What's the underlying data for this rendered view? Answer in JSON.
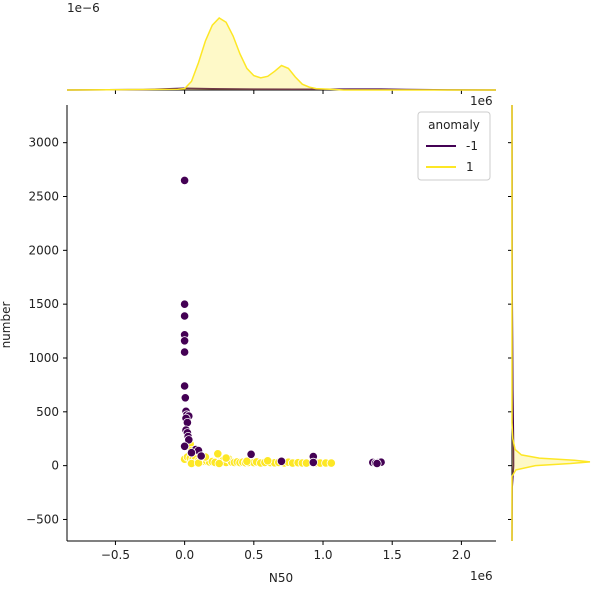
{
  "chart_data": {
    "type": "scatter",
    "subtype": "jointplot",
    "title": "",
    "xlabel": "N50",
    "ylabel": "number",
    "x_scale_label": "1e6",
    "y_scale_label": "",
    "x_marginal_scale_label": "1e6",
    "y_marginal_scale_label": "1e−6",
    "xlim": [
      -0.85,
      2.25
    ],
    "ylim": [
      -700,
      3350
    ],
    "x_ticks": [
      {
        "value": -0.5,
        "label": "−0.5"
      },
      {
        "value": 0.0,
        "label": "0.0"
      },
      {
        "value": 0.5,
        "label": "0.5"
      },
      {
        "value": 1.0,
        "label": "1.0"
      },
      {
        "value": 1.5,
        "label": "1.5"
      },
      {
        "value": 2.0,
        "label": "2.0"
      }
    ],
    "y_ticks": [
      {
        "value": -500,
        "label": "−500"
      },
      {
        "value": 0,
        "label": "0"
      },
      {
        "value": 500,
        "label": "500"
      },
      {
        "value": 1000,
        "label": "1000"
      },
      {
        "value": 1500,
        "label": "1500"
      },
      {
        "value": 2000,
        "label": "2000"
      },
      {
        "value": 2500,
        "label": "2500"
      },
      {
        "value": 3000,
        "label": "3000"
      }
    ],
    "legend": {
      "title": "anomaly",
      "placement": "top-right",
      "entries": [
        {
          "label": "-1",
          "color": "#440154"
        },
        {
          "label": "1",
          "color": "#fde725"
        }
      ]
    },
    "grid": false,
    "series": [
      {
        "name": "-1",
        "color": "#440154",
        "points": [
          [
            0.0,
            2650
          ],
          [
            0.0,
            1500
          ],
          [
            0.0,
            1390
          ],
          [
            0.0,
            1215
          ],
          [
            0.0,
            1160
          ],
          [
            0.0,
            1055
          ],
          [
            0.0,
            740
          ],
          [
            0.005,
            630
          ],
          [
            0.01,
            505
          ],
          [
            0.015,
            470
          ],
          [
            0.03,
            460
          ],
          [
            0.01,
            440
          ],
          [
            0.02,
            400
          ],
          [
            0.01,
            330
          ],
          [
            0.02,
            305
          ],
          [
            0.025,
            270
          ],
          [
            0.03,
            240
          ],
          [
            0.0,
            180
          ],
          [
            0.08,
            150
          ],
          [
            0.1,
            140
          ],
          [
            0.05,
            120
          ],
          [
            0.12,
            90
          ],
          [
            0.48,
            105
          ],
          [
            0.7,
            40
          ],
          [
            0.93,
            85
          ],
          [
            0.93,
            30
          ],
          [
            1.36,
            30
          ],
          [
            1.38,
            25
          ],
          [
            1.4,
            28
          ],
          [
            1.42,
            32
          ],
          [
            1.39,
            20
          ]
        ]
      },
      {
        "name": "1",
        "color": "#fde725",
        "points": [
          [
            0.02,
            270
          ],
          [
            0.03,
            230
          ],
          [
            0.04,
            200
          ],
          [
            0.05,
            140
          ],
          [
            0.07,
            120
          ],
          [
            0.09,
            110
          ],
          [
            0.0,
            60
          ],
          [
            0.02,
            80
          ],
          [
            0.04,
            70
          ],
          [
            0.06,
            55
          ],
          [
            0.08,
            60
          ],
          [
            0.1,
            45
          ],
          [
            0.12,
            50
          ],
          [
            0.14,
            40
          ],
          [
            0.16,
            42
          ],
          [
            0.18,
            35
          ],
          [
            0.2,
            38
          ],
          [
            0.22,
            30
          ],
          [
            0.24,
            110
          ],
          [
            0.26,
            35
          ],
          [
            0.28,
            50
          ],
          [
            0.3,
            30
          ],
          [
            0.32,
            60
          ],
          [
            0.34,
            33
          ],
          [
            0.36,
            30
          ],
          [
            0.38,
            35
          ],
          [
            0.4,
            28
          ],
          [
            0.42,
            32
          ],
          [
            0.44,
            27
          ],
          [
            0.46,
            30
          ],
          [
            0.5,
            28
          ],
          [
            0.52,
            35
          ],
          [
            0.55,
            25
          ],
          [
            0.58,
            30
          ],
          [
            0.62,
            28
          ],
          [
            0.65,
            26
          ],
          [
            0.68,
            30
          ],
          [
            0.72,
            25
          ],
          [
            0.75,
            32
          ],
          [
            0.78,
            24
          ],
          [
            0.82,
            27
          ],
          [
            0.85,
            25
          ],
          [
            0.88,
            24
          ],
          [
            0.95,
            26
          ],
          [
            0.98,
            24
          ],
          [
            1.02,
            25
          ],
          [
            1.06,
            24
          ],
          [
            0.15,
            80
          ],
          [
            0.3,
            70
          ],
          [
            0.45,
            40
          ],
          [
            0.6,
            45
          ],
          [
            0.05,
            20
          ],
          [
            0.1,
            25
          ],
          [
            0.25,
            20
          ]
        ]
      }
    ],
    "marginal_x": {
      "series": [
        {
          "name": "1",
          "color": "#fde725",
          "kde": [
            [
              -0.85,
              0
            ],
            [
              -0.05,
              0.01
            ],
            [
              0.0,
              0.02
            ],
            [
              0.05,
              0.12
            ],
            [
              0.1,
              0.38
            ],
            [
              0.15,
              0.68
            ],
            [
              0.2,
              0.9
            ],
            [
              0.25,
              1.0
            ],
            [
              0.3,
              0.94
            ],
            [
              0.35,
              0.75
            ],
            [
              0.4,
              0.5
            ],
            [
              0.45,
              0.3
            ],
            [
              0.5,
              0.2
            ],
            [
              0.55,
              0.17
            ],
            [
              0.6,
              0.19
            ],
            [
              0.65,
              0.26
            ],
            [
              0.7,
              0.34
            ],
            [
              0.75,
              0.3
            ],
            [
              0.8,
              0.18
            ],
            [
              0.85,
              0.08
            ],
            [
              0.9,
              0.04
            ],
            [
              0.95,
              0.02
            ],
            [
              1.05,
              0.01
            ],
            [
              1.15,
              0.0
            ],
            [
              2.25,
              0
            ]
          ]
        },
        {
          "name": "-1",
          "color": "#440154",
          "kde": [
            [
              -0.85,
              0
            ],
            [
              -0.3,
              0.005
            ],
            [
              0.0,
              0.025
            ],
            [
              0.2,
              0.018
            ],
            [
              0.5,
              0.012
            ],
            [
              0.8,
              0.01
            ],
            [
              1.0,
              0.01
            ],
            [
              1.2,
              0.012
            ],
            [
              1.4,
              0.012
            ],
            [
              1.6,
              0.007
            ],
            [
              1.9,
              0.002
            ],
            [
              2.25,
              0
            ]
          ]
        }
      ]
    },
    "marginal_y": {
      "series": [
        {
          "name": "1",
          "color": "#fde725",
          "kde": [
            [
              -700,
              0
            ],
            [
              -100,
              0.0
            ],
            [
              -40,
              0.05
            ],
            [
              0,
              0.3
            ],
            [
              20,
              0.75
            ],
            [
              35,
              1.0
            ],
            [
              50,
              0.8
            ],
            [
              70,
              0.35
            ],
            [
              100,
              0.12
            ],
            [
              150,
              0.04
            ],
            [
              250,
              0.01
            ],
            [
              400,
              0
            ],
            [
              3350,
              0
            ]
          ]
        },
        {
          "name": "-1",
          "color": "#440154",
          "kde": [
            [
              -700,
              0
            ],
            [
              -200,
              0.003
            ],
            [
              0,
              0.02
            ],
            [
              300,
              0.018
            ],
            [
              700,
              0.01
            ],
            [
              1200,
              0.006
            ],
            [
              1600,
              0.003
            ],
            [
              2200,
              0.001
            ],
            [
              2700,
              0.001
            ],
            [
              3350,
              0
            ]
          ]
        }
      ]
    }
  }
}
